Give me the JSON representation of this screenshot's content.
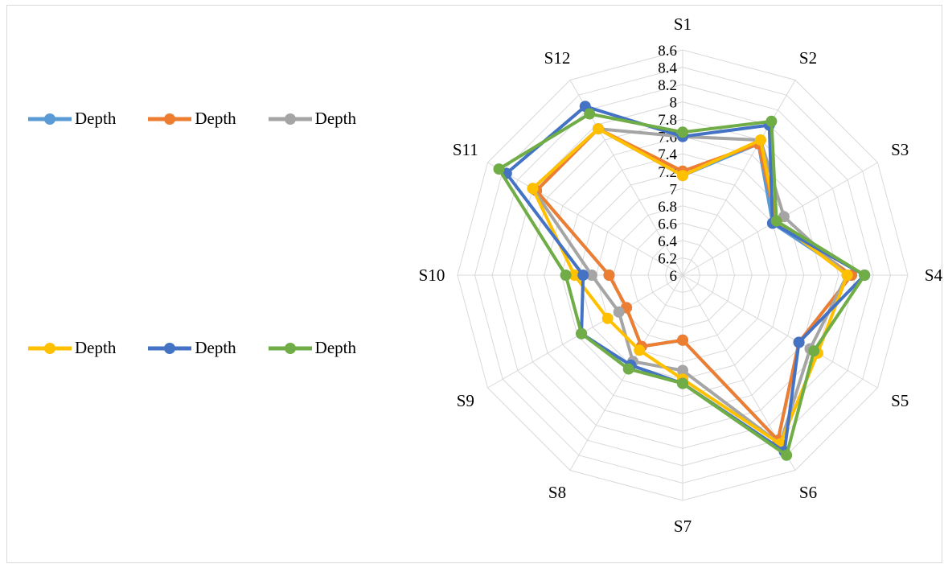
{
  "chart_data": {
    "type": "radar",
    "categories": [
      "S1",
      "S2",
      "S3",
      "S4",
      "S5",
      "S6",
      "S7",
      "S8",
      "S9",
      "S10",
      "S11",
      "S12"
    ],
    "rlim": [
      6,
      8.6
    ],
    "r_ticks": [
      "6",
      "6.2",
      "6.4",
      "6.6",
      "6.8",
      "7",
      "7.2",
      "7.4",
      "7.6",
      "7.8",
      "8",
      "8.2",
      "8.4",
      "8.6"
    ],
    "grid": true,
    "legend": "left",
    "series": [
      {
        "name": "Depth",
        "color": "#5B9BD5",
        "values": [
          7.15,
          7.75,
          7.2,
          7.95,
          7.55,
          8.2,
          6.75,
          6.95,
          6.75,
          6.85,
          7.95,
          7.95
        ]
      },
      {
        "name": "Depth",
        "color": "#ED7D31",
        "values": [
          7.2,
          7.75,
          7.25,
          7.95,
          7.55,
          8.2,
          6.75,
          6.95,
          6.75,
          6.85,
          7.95,
          7.95
        ]
      },
      {
        "name": "Depth",
        "color": "#A5A5A5",
        "values": [
          7.6,
          7.8,
          7.35,
          7.9,
          7.7,
          8.25,
          7.1,
          7.15,
          6.85,
          7.05,
          8.0,
          7.95
        ]
      },
      {
        "name": "Depth",
        "color": "#FFC000",
        "values": [
          7.15,
          7.8,
          7.25,
          7.9,
          7.8,
          8.25,
          7.2,
          7.0,
          7.0,
          7.25,
          8.0,
          7.95
        ]
      },
      {
        "name": "Depth",
        "color": "#4472C4",
        "values": [
          7.6,
          8.0,
          7.2,
          8.1,
          7.55,
          8.35,
          7.25,
          7.2,
          7.35,
          7.15,
          8.35,
          8.25
        ]
      },
      {
        "name": "Depth",
        "color": "#70AD47",
        "values": [
          7.65,
          8.05,
          7.25,
          8.1,
          7.75,
          8.4,
          7.25,
          7.25,
          7.35,
          7.35,
          8.45,
          8.15
        ]
      }
    ]
  }
}
